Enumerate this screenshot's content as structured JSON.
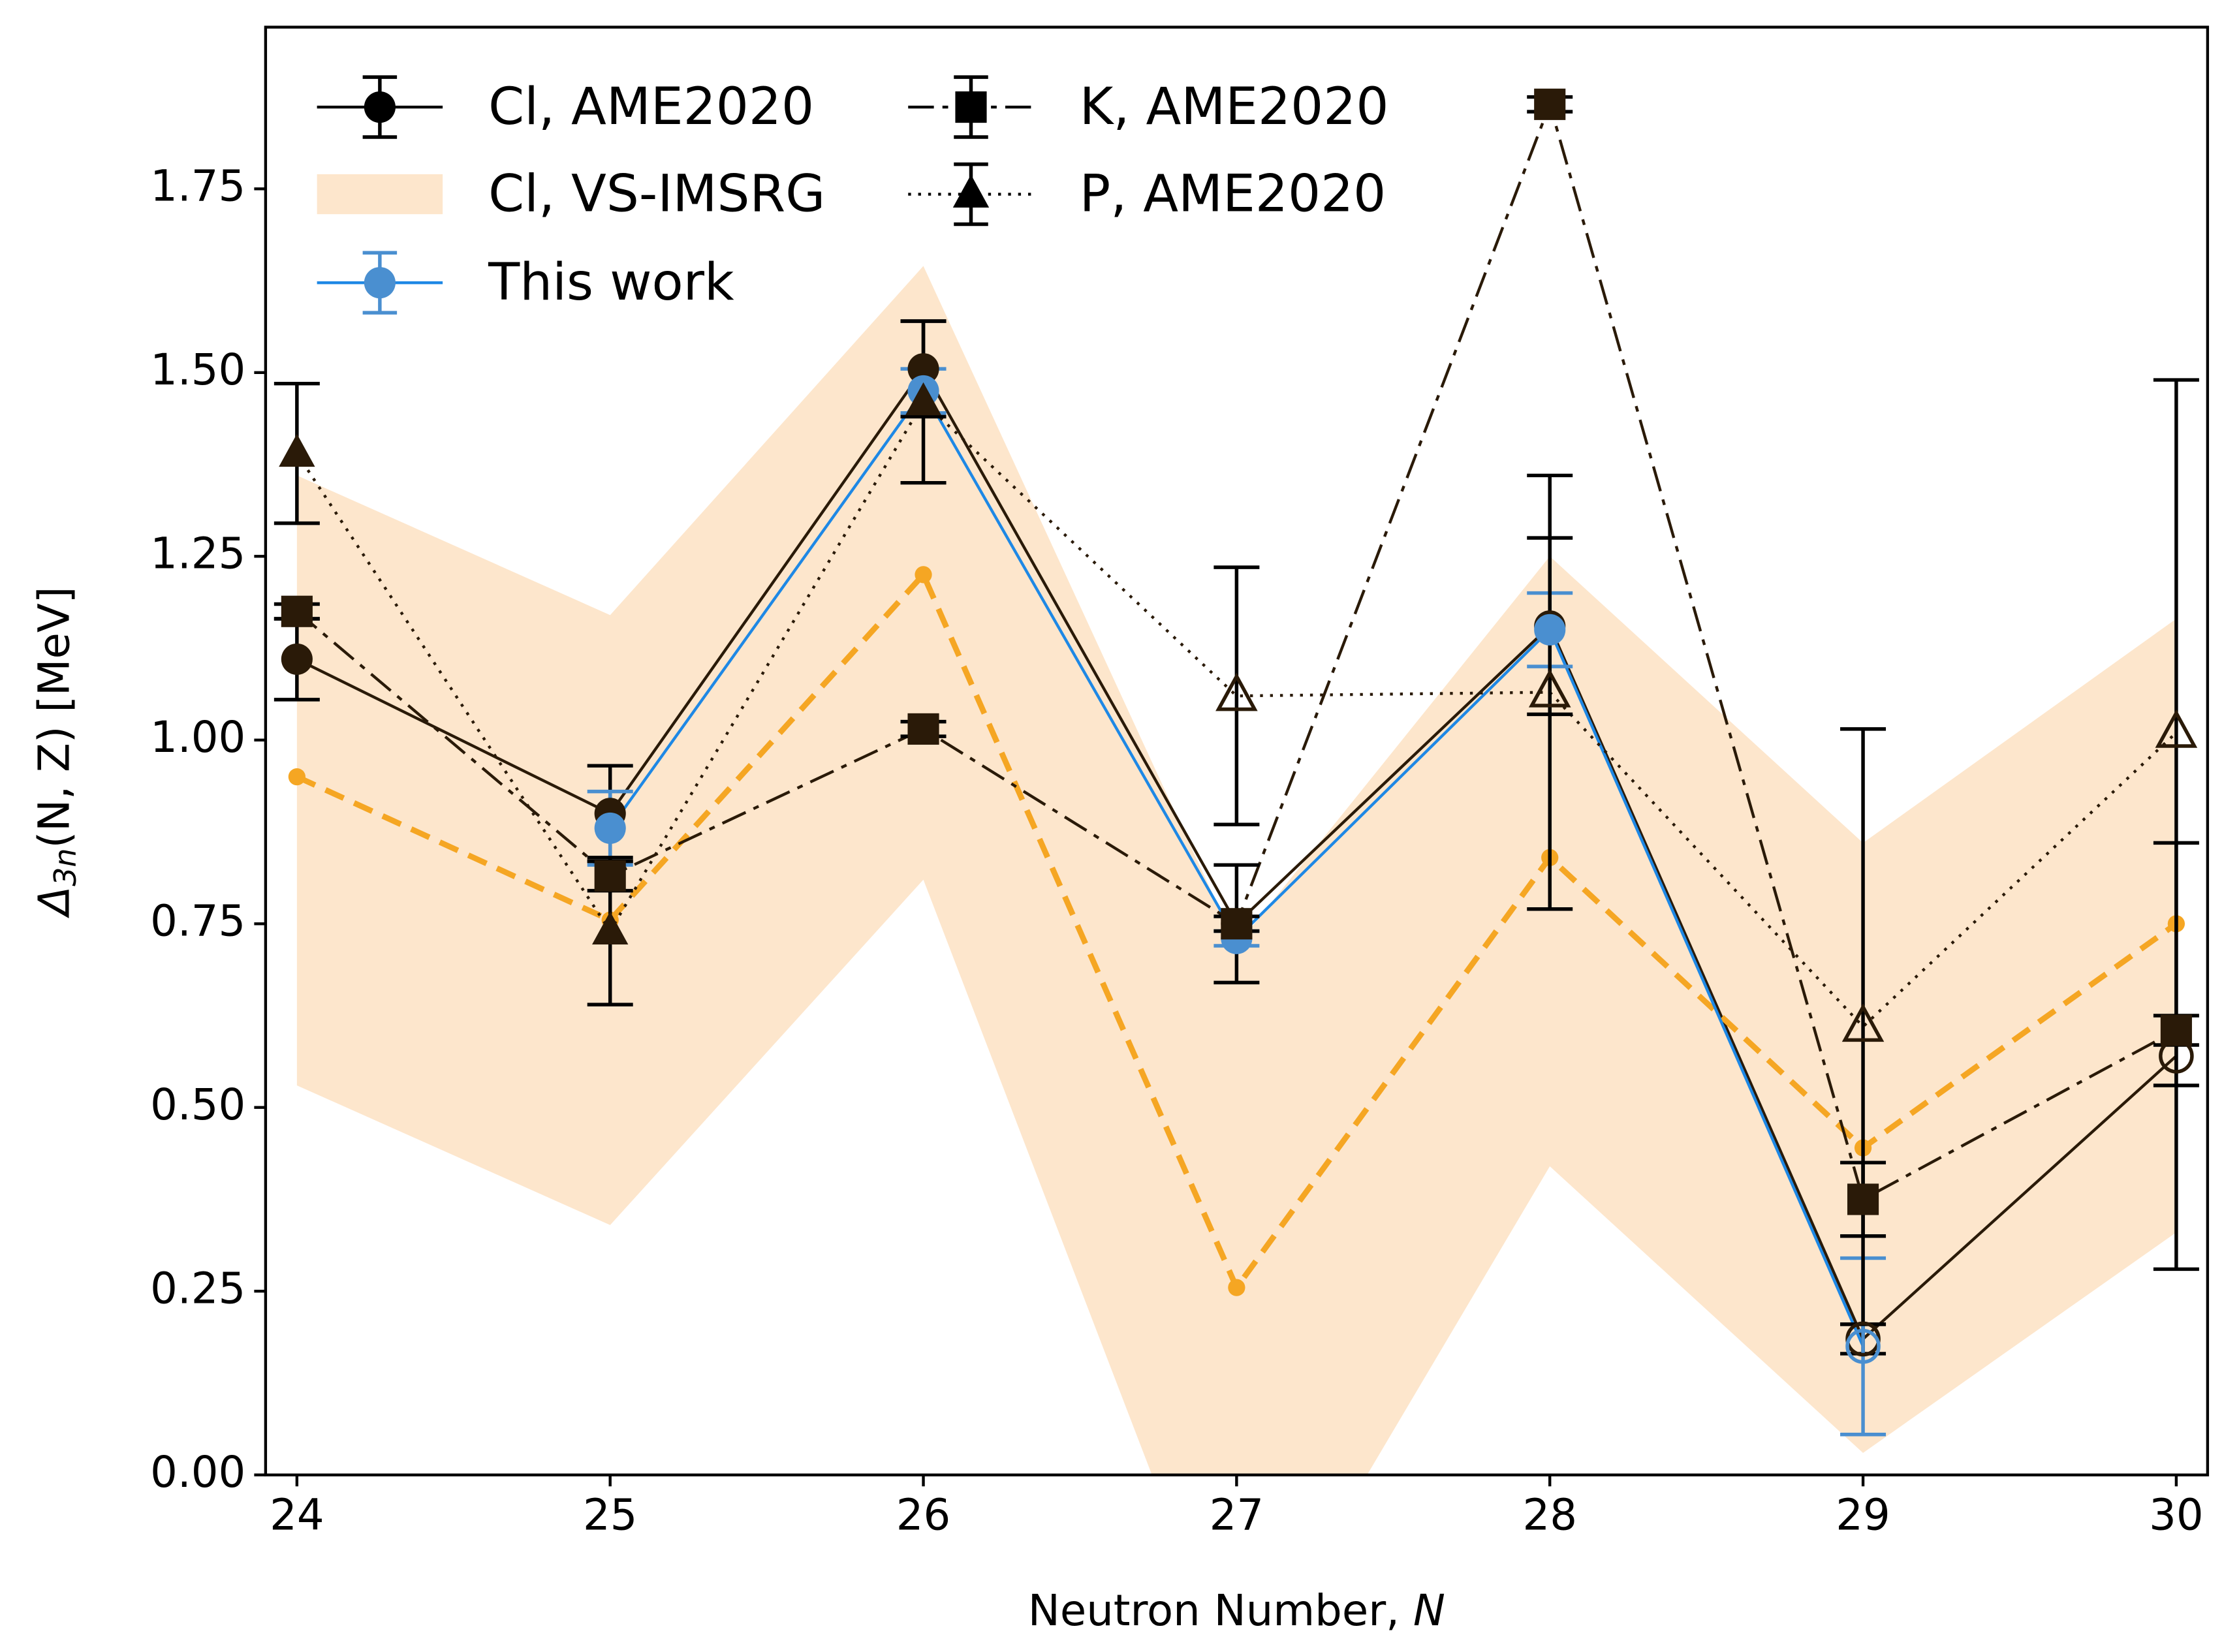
{
  "chart_data": {
    "type": "line",
    "xlabel": {
      "text": "Neutron Number, ",
      "variable": "N"
    },
    "ylabel": {
      "symbol": "Δ",
      "subscript": "3n",
      "rest": "(N, Z) [MeV]"
    },
    "x": [
      24,
      25,
      26,
      27,
      28,
      29,
      30
    ],
    "xlim": [
      23.9,
      30.1
    ],
    "xticks": [
      24,
      25,
      26,
      27,
      28,
      29,
      30
    ],
    "ylim": [
      0,
      1.97
    ],
    "yticks": [
      {
        "value": 0,
        "label": "0.00"
      },
      {
        "value": 0.25,
        "label": "0.25"
      },
      {
        "value": 0.5,
        "label": "0.50"
      },
      {
        "value": 0.75,
        "label": "0.75"
      },
      {
        "value": 1,
        "label": "1.00"
      },
      {
        "value": 1.25,
        "label": "1.25"
      },
      {
        "value": 1.5,
        "label": "1.50"
      },
      {
        "value": 1.75,
        "label": "1.75"
      }
    ],
    "series": [
      {
        "name": "Cl, AME2020",
        "color": "#2a1a08",
        "marker": "circle",
        "dash": "",
        "values": [
          1.11,
          0.9,
          1.505,
          0.75,
          1.155,
          0.185,
          0.57
        ],
        "errors": [
          0.055,
          0.065,
          0.065,
          0.08,
          0.12,
          0.02,
          0.29
        ],
        "open_markers": [
          5,
          6
        ]
      },
      {
        "name": "Cl, VS-IMSRG",
        "color": "#f5a623",
        "band_color": "#fde6cc",
        "band": true,
        "dash": "14 8",
        "values": [
          0.95,
          0.755,
          1.225,
          0.255,
          0.84,
          0.445,
          0.75
        ],
        "lower": [
          0.53,
          0.34,
          0.81,
          -0.3,
          0.42,
          0.03,
          0.33
        ],
        "upper": [
          1.36,
          1.17,
          1.645,
          0.72,
          1.25,
          0.86,
          1.165
        ]
      },
      {
        "name": "This work",
        "color": "#1e88e5",
        "marker_color": "#4a8fd0",
        "marker": "circle",
        "dash": "",
        "values": [
          null,
          0.88,
          1.475,
          0.73,
          1.15,
          0.175,
          null
        ],
        "errors": [
          null,
          0.05,
          0.03,
          0.01,
          0.05,
          0.12,
          null
        ],
        "open_markers": [
          5
        ]
      },
      {
        "name": "K, AME2020",
        "color": "#2a1a08",
        "marker": "square",
        "dash": "18 6 4 6",
        "values": [
          1.175,
          0.815,
          1.015,
          0.75,
          1.865,
          0.375,
          0.605
        ],
        "errors": [
          0.01,
          0.02,
          0.01,
          0.01,
          0.01,
          0.05,
          0.02
        ],
        "open_markers": []
      },
      {
        "name": "P, AME2020",
        "color": "#2a1a08",
        "marker": "triangle",
        "dash": "2 5",
        "values": [
          1.39,
          0.74,
          1.46,
          1.06,
          1.065,
          0.61,
          1.01
        ],
        "errors": [
          0.095,
          0.1,
          0.11,
          0.175,
          0.295,
          0.405,
          0.48
        ],
        "open_markers": [
          3,
          4,
          5,
          6
        ]
      }
    ],
    "legend": "upper left"
  }
}
